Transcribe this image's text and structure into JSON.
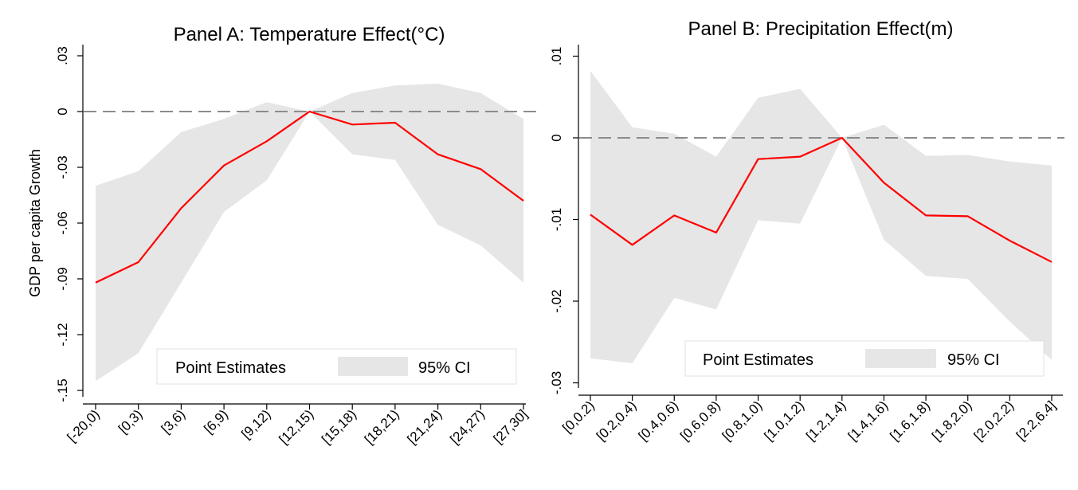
{
  "chart_data": [
    {
      "type": "line",
      "title": "Panel A: Temperature Effect(°C)",
      "ylabel": "GDP per capita Growth",
      "xlabel": "",
      "categories": [
        "[-20,0)",
        "[0,3)",
        "[3,6)",
        "[6,9)",
        "[9,12)",
        "[12,15)",
        "[15,18)",
        "[18,21)",
        "[21,24)",
        "[24,27)",
        "[27,30]"
      ],
      "ylim": [
        -0.155,
        0.035
      ],
      "yticks": [
        0.03,
        0,
        -0.03,
        -0.06,
        -0.09,
        -0.12,
        -0.15
      ],
      "ytick_labels": [
        ".03",
        "0",
        "-.03",
        "-.06",
        "-.09",
        "-.12",
        "-.15"
      ],
      "series": [
        {
          "name": "Point Estimates",
          "values": [
            -0.092,
            -0.081,
            -0.052,
            -0.029,
            -0.016,
            0.0,
            -0.007,
            -0.006,
            -0.023,
            -0.031,
            -0.048
          ]
        },
        {
          "name": "95% CI",
          "lower": [
            -0.145,
            -0.13,
            -0.092,
            -0.054,
            -0.037,
            0.0,
            -0.023,
            -0.026,
            -0.061,
            -0.072,
            -0.092
          ],
          "upper": [
            -0.04,
            -0.032,
            -0.011,
            -0.004,
            0.005,
            0.0,
            0.01,
            0.014,
            0.015,
            0.01,
            -0.004
          ]
        }
      ],
      "reference_line": 0,
      "grid": false,
      "legend_position": "bottom"
    },
    {
      "type": "line",
      "title": "Panel B: Precipitation Effect(m)",
      "ylabel": "",
      "xlabel": "",
      "categories": [
        "[0,0.2)",
        "[0.2,0.4)",
        "[0.4,0.6)",
        "[0.6,0.8)",
        "[0.8,1.0)",
        "[1.0,1.2)",
        "[1.2,1.4)",
        "[1.4,1.6)",
        "[1.6,1.8)",
        "[1.8,2.0)",
        "[2.0,2.2)",
        "[2.2,6.4]"
      ],
      "ylim": [
        -0.031,
        0.0115
      ],
      "yticks": [
        0.01,
        0,
        -0.01,
        -0.02,
        -0.03
      ],
      "ytick_labels": [
        ".01",
        "0",
        "-.01",
        "-.02",
        "-.03"
      ],
      "series": [
        {
          "name": "Point Estimates",
          "values": [
            -0.0094,
            -0.0131,
            -0.0095,
            -0.0116,
            -0.0026,
            -0.0023,
            0.0,
            -0.0055,
            -0.0095,
            -0.0096,
            -0.0126,
            -0.0152
          ]
        },
        {
          "name": "95% CI",
          "lower": [
            -0.027,
            -0.0276,
            -0.0196,
            -0.021,
            -0.0101,
            -0.0105,
            0.0,
            -0.0125,
            -0.0169,
            -0.0173,
            -0.0225,
            -0.0272
          ],
          "upper": [
            0.0082,
            0.0013,
            0.0005,
            -0.0023,
            0.0049,
            0.006,
            0.0,
            0.0016,
            -0.0022,
            -0.0021,
            -0.0029,
            -0.0034
          ]
        }
      ],
      "reference_line": 0,
      "grid": false,
      "legend_position": "bottom"
    }
  ],
  "colors": {
    "estimate_line": "#ff0000",
    "ci_band": "#e6e6e6",
    "reference_line": "#8c8c8c",
    "axis": "#000000"
  }
}
